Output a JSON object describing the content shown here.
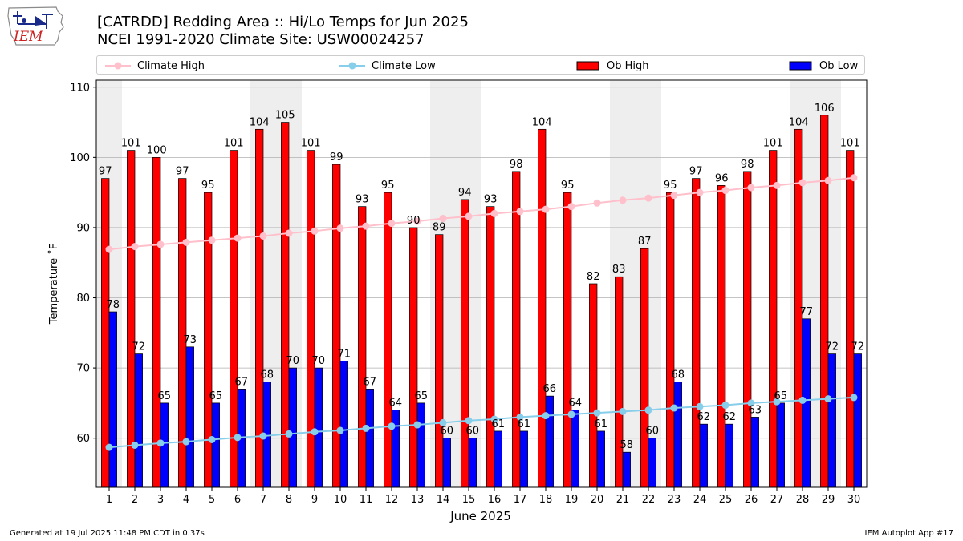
{
  "logo": {
    "text": "IEM",
    "icon": "iem-iowa-logo-icon"
  },
  "title_line1": "[CATRDD] Redding Area :: Hi/Lo Temps for Jun 2025",
  "title_line2": "NCEI 1991-2020 Climate Site: USW00024257",
  "legend": {
    "climate_high": "Climate High",
    "climate_low": "Climate Low",
    "ob_high": "Ob High",
    "ob_low": "Ob Low"
  },
  "footer": {
    "left": "Generated at 19 Jul 2025 11:48 PM CDT in 0.37s",
    "right": "IEM Autoplot App #17"
  },
  "colors": {
    "ob_high": "#ff0000",
    "ob_low": "#0000ff",
    "climate_high": "#ffc0cb",
    "climate_low": "#87ceeb",
    "weekend_shade": "#eeeeee",
    "grid": "#b0b0b0"
  },
  "chart_data": {
    "type": "bar",
    "xlabel": "June 2025",
    "ylabel": "Temperature ˚F",
    "ylim": [
      53,
      111
    ],
    "yticks": [
      60,
      70,
      80,
      90,
      100,
      110
    ],
    "grid": "horizontal",
    "legend_position": "top",
    "categories": [
      "1",
      "2",
      "3",
      "4",
      "5",
      "6",
      "7",
      "8",
      "9",
      "10",
      "11",
      "12",
      "13",
      "14",
      "15",
      "16",
      "17",
      "18",
      "19",
      "20",
      "21",
      "22",
      "23",
      "24",
      "25",
      "26",
      "27",
      "28",
      "29",
      "30"
    ],
    "shaded_day_pairs": [
      [
        1,
        1
      ],
      [
        7,
        8
      ],
      [
        14,
        15
      ],
      [
        21,
        22
      ],
      [
        28,
        29
      ]
    ],
    "series": [
      {
        "name": "Ob High",
        "kind": "bar",
        "values": [
          97,
          101,
          100,
          97,
          95,
          101,
          104,
          105,
          101,
          99,
          93,
          95,
          90,
          89,
          94,
          93,
          98,
          104,
          95,
          82,
          83,
          87,
          95,
          97,
          96,
          98,
          101,
          104,
          106,
          101
        ]
      },
      {
        "name": "Ob Low",
        "kind": "bar",
        "values": [
          78,
          72,
          65,
          73,
          65,
          67,
          68,
          70,
          70,
          71,
          67,
          64,
          65,
          60,
          60,
          61,
          61,
          66,
          64,
          61,
          58,
          60,
          68,
          62,
          62,
          63,
          65,
          77,
          72,
          72
        ]
      },
      {
        "name": "Climate High",
        "kind": "line",
        "values": [
          86.9,
          87.3,
          87.6,
          87.9,
          88.2,
          88.5,
          88.8,
          89.2,
          89.5,
          89.9,
          90.2,
          90.6,
          90.9,
          91.3,
          91.6,
          92.0,
          92.3,
          92.6,
          93.0,
          93.5,
          93.9,
          94.2,
          94.6,
          95.0,
          95.3,
          95.7,
          96.0,
          96.4,
          96.7,
          97.1
        ]
      },
      {
        "name": "Climate Low",
        "kind": "line",
        "values": [
          58.7,
          59.0,
          59.3,
          59.5,
          59.8,
          60.1,
          60.3,
          60.6,
          60.9,
          61.1,
          61.4,
          61.7,
          61.9,
          62.2,
          62.5,
          62.7,
          63.0,
          63.2,
          63.4,
          63.6,
          63.8,
          64.0,
          64.3,
          64.5,
          64.7,
          65.0,
          65.2,
          65.4,
          65.6,
          65.8
        ]
      }
    ]
  }
}
